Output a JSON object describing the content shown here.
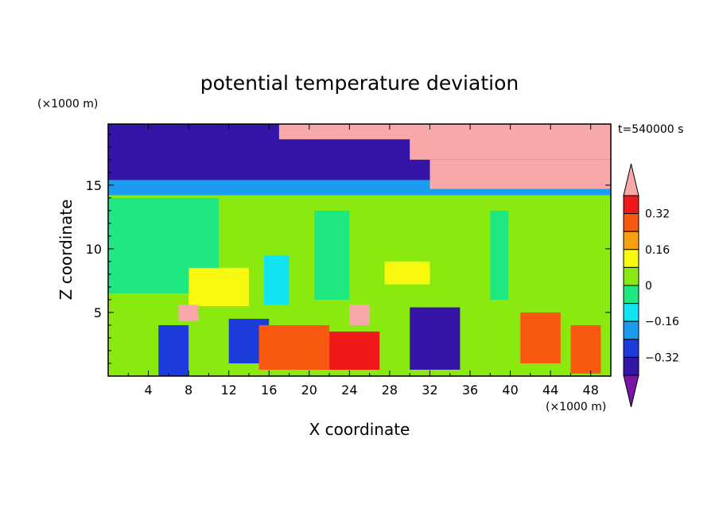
{
  "chart_data": {
    "type": "heatmap",
    "title": "potential temperature deviation",
    "xlabel": "X coordinate",
    "ylabel": "Z coordinate",
    "x_unit": "(×1000 m)",
    "y_unit": "(×1000 m)",
    "time_label": "t=540000 s",
    "xlim": [
      0,
      50
    ],
    "ylim": [
      0,
      19.8
    ],
    "x_ticks": [
      4,
      8,
      12,
      16,
      20,
      24,
      28,
      32,
      36,
      40,
      44,
      48
    ],
    "y_ticks": [
      5,
      10,
      15
    ],
    "colorbar": {
      "levels": [
        -0.4,
        -0.32,
        -0.24,
        -0.16,
        -0.08,
        0,
        0.08,
        0.16,
        0.24,
        0.32,
        0.4
      ],
      "labeled_levels": [
        0.32,
        0.16,
        0,
        -0.16,
        -0.32
      ],
      "colors": [
        "#7a15a8",
        "#3515a8",
        "#1e3cdc",
        "#1a9cf0",
        "#10e4f0",
        "#20e880",
        "#8aea10",
        "#f8f810",
        "#f8a010",
        "#f85810",
        "#f01818",
        "#f8a8a8"
      ],
      "extend": "both"
    },
    "regions": [
      {
        "x": [
          0,
          50
        ],
        "z": [
          5.4,
          14.2
        ],
        "value": 0.04
      },
      {
        "x": [
          0,
          11
        ],
        "z": [
          6.5,
          14
        ],
        "value": -0.04
      },
      {
        "x": [
          20.5,
          24
        ],
        "z": [
          6,
          13
        ],
        "value": -0.04
      },
      {
        "x": [
          38,
          39.8
        ],
        "z": [
          6,
          13
        ],
        "value": -0.04
      },
      {
        "x": [
          8,
          14
        ],
        "z": [
          5.5,
          8.5
        ],
        "value": 0.12
      },
      {
        "x": [
          27.5,
          32
        ],
        "z": [
          7.2,
          9
        ],
        "value": 0.14
      },
      {
        "x": [
          15.5,
          18
        ],
        "z": [
          5.6,
          9.5
        ],
        "value": -0.1
      },
      {
        "x": [
          0,
          50
        ],
        "z": [
          14.2,
          15.4
        ],
        "value": -0.2
      },
      {
        "x": [
          0,
          50
        ],
        "z": [
          15.4,
          19.8
        ],
        "value": -0.4
      },
      {
        "x": [
          0,
          50
        ],
        "z": [
          0,
          5.4
        ],
        "value": 0.0
      },
      {
        "x": [
          5,
          8
        ],
        "z": [
          0,
          4
        ],
        "value": -0.32
      },
      {
        "x": [
          12,
          16
        ],
        "z": [
          1,
          4.5
        ],
        "value": -0.32
      },
      {
        "x": [
          30,
          35
        ],
        "z": [
          0.5,
          5.4
        ],
        "value": -0.4
      },
      {
        "x": [
          15,
          22
        ],
        "z": [
          0.5,
          4
        ],
        "value": 0.3
      },
      {
        "x": [
          22,
          27
        ],
        "z": [
          0.5,
          3.5
        ],
        "value": 0.32
      },
      {
        "x": [
          41,
          45
        ],
        "z": [
          1,
          5
        ],
        "value": 0.26
      },
      {
        "x": [
          46,
          49
        ],
        "z": [
          0.2,
          4
        ],
        "value": 0.28
      },
      {
        "x": [
          7,
          9
        ],
        "z": [
          4.3,
          5.6
        ],
        "value": 0.45
      },
      {
        "x": [
          24,
          26
        ],
        "z": [
          4,
          5.6
        ],
        "value": 0.45
      },
      {
        "x": [
          17,
          31
        ],
        "z": [
          18.6,
          19.8
        ],
        "value": 0.45
      },
      {
        "x": [
          30,
          50
        ],
        "z": [
          17,
          19.8
        ],
        "value": 0.45
      },
      {
        "x": [
          32,
          50
        ],
        "z": [
          14.7,
          17
        ],
        "value": 0.45
      }
    ]
  }
}
